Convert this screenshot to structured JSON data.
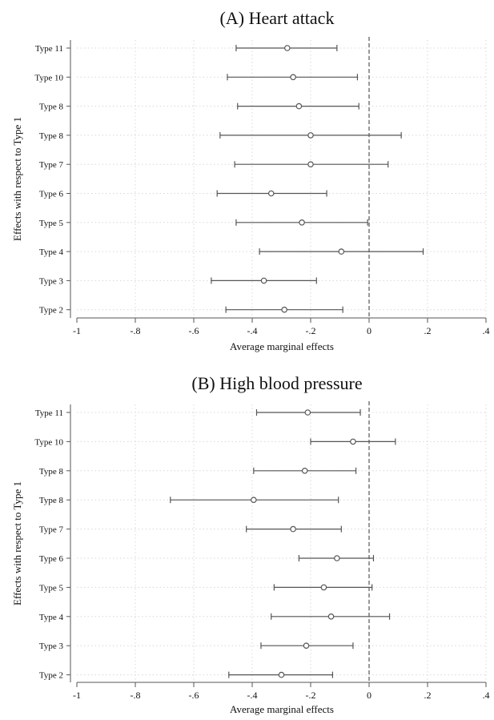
{
  "chart_data": [
    {
      "type": "forest",
      "title": "(A) Heart attack",
      "xlabel": "Average marginal effects",
      "ylabel": "Effects with respect to Type 1",
      "xlim": [
        -1,
        0.4
      ],
      "xticks": [
        {
          "value": -1,
          "label": "-1"
        },
        {
          "value": -0.8,
          "label": "-.8"
        },
        {
          "value": -0.6,
          "label": "-.6"
        },
        {
          "value": -0.4,
          "label": "-.4"
        },
        {
          "value": -0.2,
          "label": "-.2"
        },
        {
          "value": 0,
          "label": "0"
        },
        {
          "value": 0.2,
          "label": ".2"
        },
        {
          "value": 0.4,
          "label": ".4"
        }
      ],
      "reference_line": 0,
      "grid": true,
      "categories": [
        "Type 11",
        "Type 10",
        "Type 8",
        "Type 8",
        "Type 7",
        "Type 6",
        "Type 5",
        "Type 4",
        "Type 3",
        "Type 2"
      ],
      "estimates": [
        -0.28,
        -0.26,
        -0.24,
        -0.2,
        -0.2,
        -0.335,
        -0.23,
        -0.095,
        -0.36,
        -0.29
      ],
      "ci_low": [
        -0.455,
        -0.485,
        -0.45,
        -0.51,
        -0.46,
        -0.52,
        -0.455,
        -0.375,
        -0.54,
        -0.49
      ],
      "ci_high": [
        -0.11,
        -0.04,
        -0.035,
        0.11,
        0.065,
        -0.145,
        -0.005,
        0.185,
        -0.18,
        -0.09
      ]
    },
    {
      "type": "forest",
      "title": "(B) High blood pressure",
      "xlabel": "Average marginal effects",
      "ylabel": "Effects with respect to Type 1",
      "xlim": [
        -1,
        0.4
      ],
      "xticks": [
        {
          "value": -1,
          "label": "-1"
        },
        {
          "value": -0.8,
          "label": "-.8"
        },
        {
          "value": -0.6,
          "label": "-.6"
        },
        {
          "value": -0.4,
          "label": "-.4"
        },
        {
          "value": -0.2,
          "label": "-.2"
        },
        {
          "value": 0,
          "label": "0"
        },
        {
          "value": 0.2,
          "label": ".2"
        },
        {
          "value": 0.4,
          "label": ".4"
        }
      ],
      "reference_line": 0,
      "grid": true,
      "categories": [
        "Type 11",
        "Type 10",
        "Type 8",
        "Type 8",
        "Type 7",
        "Type 6",
        "Type 5",
        "Type 4",
        "Type 3",
        "Type 2"
      ],
      "estimates": [
        -0.21,
        -0.055,
        -0.22,
        -0.395,
        -0.26,
        -0.11,
        -0.155,
        -0.13,
        -0.215,
        -0.3
      ],
      "ci_low": [
        -0.385,
        -0.2,
        -0.395,
        -0.68,
        -0.42,
        -0.24,
        -0.325,
        -0.335,
        -0.37,
        -0.48
      ],
      "ci_high": [
        -0.03,
        0.09,
        -0.045,
        -0.105,
        -0.095,
        0.015,
        0.01,
        0.07,
        -0.055,
        -0.125
      ]
    }
  ]
}
